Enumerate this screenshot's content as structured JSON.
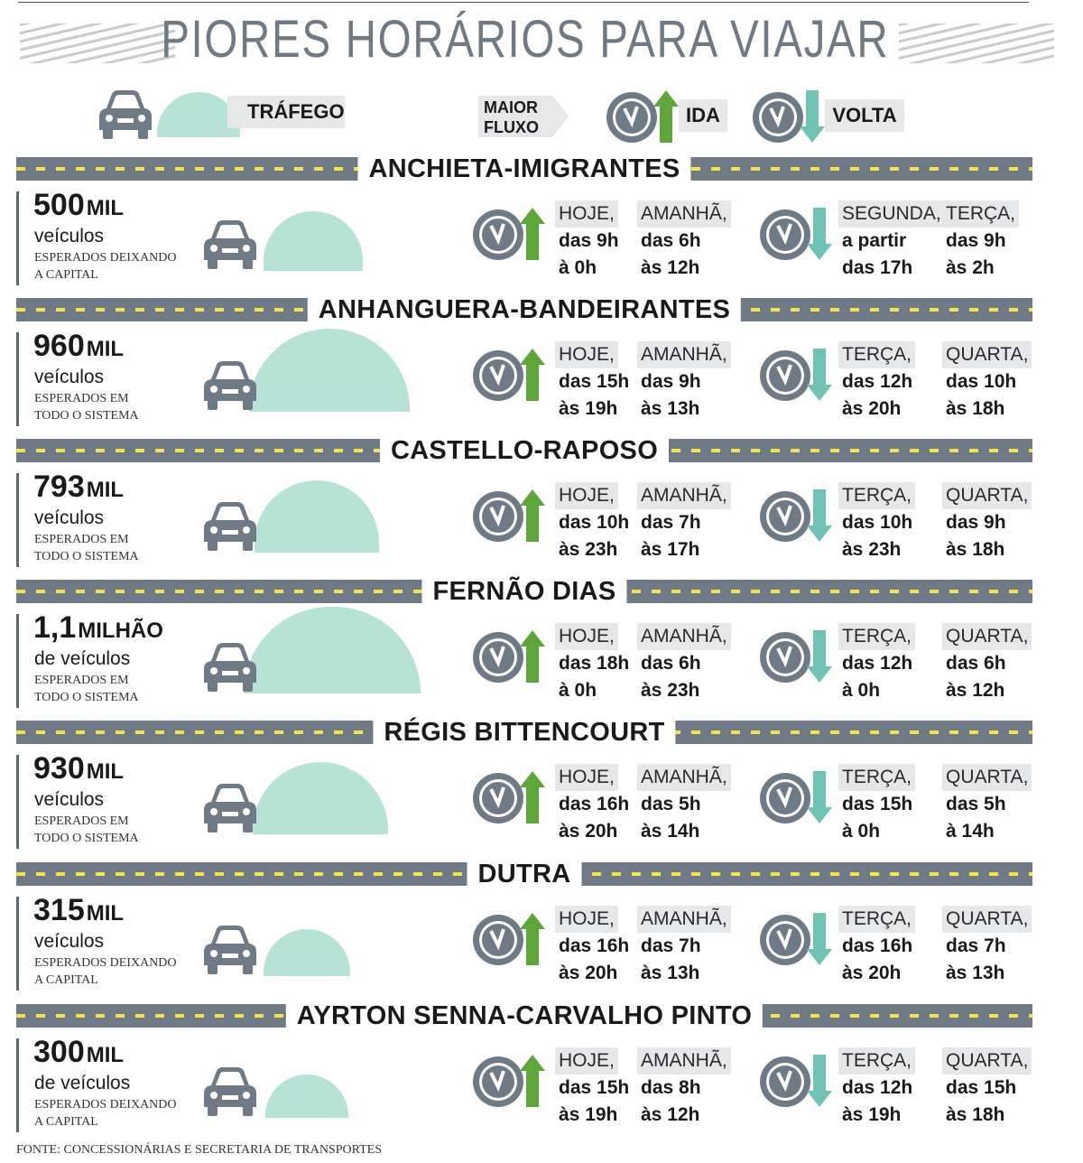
{
  "title": "PIORES HORÁRIOS PARA VIAJAR",
  "legend": {
    "traffic_label": "TRÁFEGO",
    "flow_label_1": "MAIOR",
    "flow_label_2": "FLUXO",
    "ida_label": "IDA",
    "volta_label": "VOLTA",
    "icons": [
      "car-icon",
      "clock-icon",
      "arrow-up-icon",
      "arrow-down-icon"
    ]
  },
  "colors": {
    "road": "#6e7b86",
    "road_dash": "#f3e44a",
    "dome": "#b7e2d8",
    "ida_arrow": "#5ea63a",
    "volta_arrow": "#6fc3b5",
    "chip": "#e4e8eb",
    "car": "#6e7b86"
  },
  "sections": [
    {
      "name": "ANCHIETA-IMIGRANTES",
      "number": "500",
      "unit": "MIL",
      "sub1": "veículos",
      "sub2_line1": "ESPERADOS DEIXANDO",
      "sub2_line2": "A CAPITAL",
      "ida": [
        {
          "day": "HOJE,",
          "from": "das 9h",
          "to": "à 0h"
        },
        {
          "day": "AMANHÃ,",
          "from": "das 6h",
          "to": "às 12h"
        }
      ],
      "volta": [
        {
          "day": "SEGUNDA,",
          "from": "a partir",
          "to": "das 17h"
        },
        {
          "day": "TERÇA,",
          "from": "das 9h",
          "to": "às 2h"
        }
      ]
    },
    {
      "name": "ANHANGUERA-BANDEIRANTES",
      "number": "960",
      "unit": "MIL",
      "sub1": "veículos",
      "sub2_line1": "ESPERADOS EM",
      "sub2_line2": "TODO O SISTEMA",
      "ida": [
        {
          "day": "HOJE,",
          "from": "das 15h",
          "to": "às 19h"
        },
        {
          "day": "AMANHÃ,",
          "from": "das 9h",
          "to": "às 13h"
        }
      ],
      "volta": [
        {
          "day": "TERÇA,",
          "from": "das 12h",
          "to": "às 20h"
        },
        {
          "day": "QUARTA,",
          "from": "das 10h",
          "to": "às 18h"
        }
      ]
    },
    {
      "name": "CASTELLO-RAPOSO",
      "number": "793",
      "unit": "MIL",
      "sub1": "veículos",
      "sub2_line1": "ESPERADOS EM",
      "sub2_line2": "TODO O SISTEMA",
      "ida": [
        {
          "day": "HOJE,",
          "from": "das 10h",
          "to": "às 23h"
        },
        {
          "day": "AMANHÃ,",
          "from": "das 7h",
          "to": "às 17h"
        }
      ],
      "volta": [
        {
          "day": "TERÇA,",
          "from": "das 10h",
          "to": "às 23h"
        },
        {
          "day": "QUARTA,",
          "from": "das 9h",
          "to": "às 18h"
        }
      ]
    },
    {
      "name": "FERNÃO DIAS",
      "number": "1,1",
      "unit": "MILHÃO",
      "sub1": "de veículos",
      "sub2_line1": "ESPERADOS EM",
      "sub2_line2": "TODO O SISTEMA",
      "ida": [
        {
          "day": "HOJE,",
          "from": "das 18h",
          "to": "à 0h"
        },
        {
          "day": "AMANHÃ,",
          "from": "das 6h",
          "to": "às 23h"
        }
      ],
      "volta": [
        {
          "day": "TERÇA,",
          "from": "das 12h",
          "to": "à 0h"
        },
        {
          "day": "QUARTA,",
          "from": "das 6h",
          "to": "às 12h"
        }
      ]
    },
    {
      "name": "RÉGIS BITTENCOURT",
      "number": "930",
      "unit": "MIL",
      "sub1": "veículos",
      "sub2_line1": "ESPERADOS EM",
      "sub2_line2": "TODO O SISTEMA",
      "ida": [
        {
          "day": "HOJE,",
          "from": "das 16h",
          "to": "às 20h"
        },
        {
          "day": "AMANHÃ,",
          "from": "das 5h",
          "to": "às 14h"
        }
      ],
      "volta": [
        {
          "day": "TERÇA,",
          "from": "das 15h",
          "to": "à 0h"
        },
        {
          "day": "QUARTA,",
          "from": "das 5h",
          "to": "à 14h"
        }
      ]
    },
    {
      "name": "DUTRA",
      "number": "315",
      "unit": "MIL",
      "sub1": "veículos",
      "sub2_line1": "ESPERADOS DEIXANDO",
      "sub2_line2": "A CAPITAL",
      "ida": [
        {
          "day": "HOJE,",
          "from": "das 16h",
          "to": "às 20h"
        },
        {
          "day": "AMANHÃ,",
          "from": "das 7h",
          "to": "às 13h"
        }
      ],
      "volta": [
        {
          "day": "TERÇA,",
          "from": "das 16h",
          "to": "às 20h"
        },
        {
          "day": "QUARTA,",
          "from": "das 7h",
          "to": "às 13h"
        }
      ]
    },
    {
      "name": "AYRTON SENNA-CARVALHO PINTO",
      "number": "300",
      "unit": "MIL",
      "sub1": "de veículos",
      "sub2_line1": "ESPERADOS DEIXANDO",
      "sub2_line2": "A CAPITAL",
      "ida": [
        {
          "day": "HOJE,",
          "from": "das 15h",
          "to": "às 19h"
        },
        {
          "day": "AMANHÃ,",
          "from": "das 8h",
          "to": "às 12h"
        }
      ],
      "volta": [
        {
          "day": "TERÇA,",
          "from": "das 12h",
          "to": "às 19h"
        },
        {
          "day": "QUARTA,",
          "from": "das 15h",
          "to": "às 18h"
        }
      ]
    }
  ],
  "source": "FONTE: CONCESSIONÁRIAS E SECRETARIA DE TRANSPORTES"
}
